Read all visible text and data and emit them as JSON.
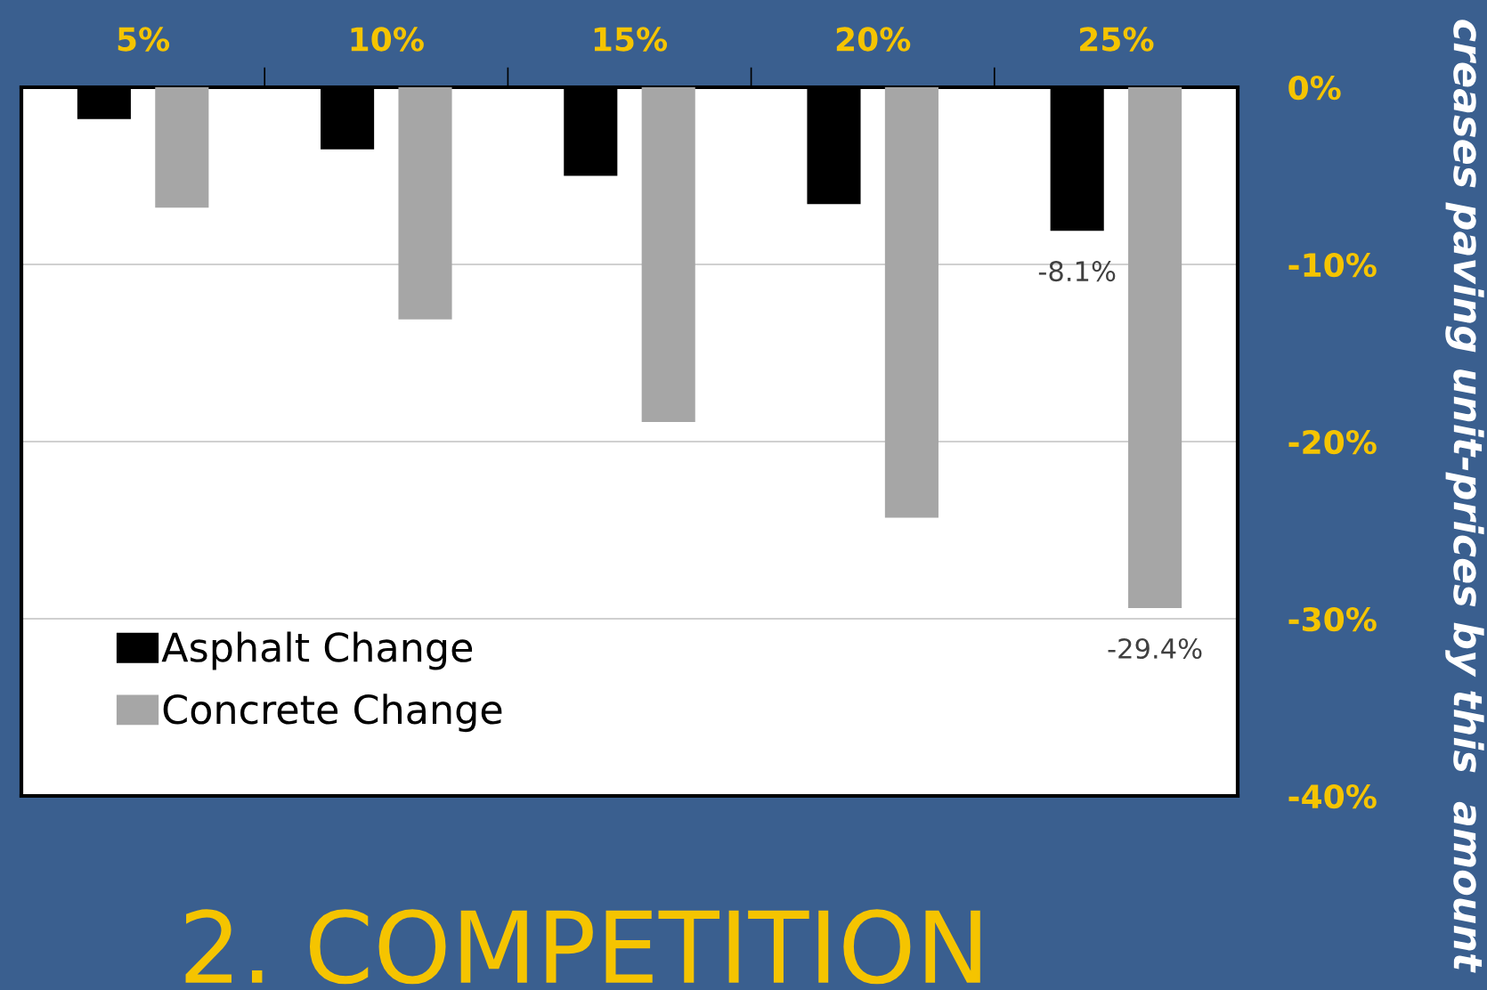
{
  "chart_data": {
    "type": "bar",
    "title": "2. COMPETITION",
    "ylabel": "creases paving unit-prices by this  amount",
    "categories": [
      "5%",
      "10%",
      "15%",
      "20%",
      "25%"
    ],
    "series": [
      {
        "name": "Asphalt Change",
        "color": "#000000",
        "values": [
          -1.8,
          -3.5,
          -5.0,
          -6.6,
          -8.1
        ],
        "value_labels": [
          null,
          null,
          null,
          null,
          "-8.1%"
        ]
      },
      {
        "name": "Concrete Change",
        "color": "#a6a6a6",
        "values": [
          -6.8,
          -13.1,
          -18.9,
          -24.3,
          -29.4
        ],
        "value_labels": [
          null,
          null,
          null,
          null,
          "-29.4%"
        ]
      }
    ],
    "ylim": [
      -40,
      0
    ],
    "yticks": [
      {
        "value": -40,
        "label": "-40%"
      },
      {
        "value": -30,
        "label": "-30%"
      },
      {
        "value": -20,
        "label": "-20%"
      },
      {
        "value": -10,
        "label": "-10%"
      },
      {
        "value": 0,
        "label": "0%"
      }
    ],
    "grid": "y",
    "legend": "bottom left"
  }
}
